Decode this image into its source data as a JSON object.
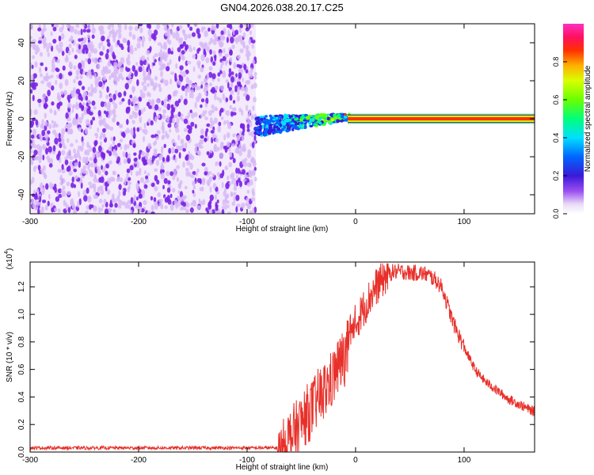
{
  "title": "GN04.2026.038.20.17.C25",
  "colors": {
    "snr_line": "#e8302a",
    "axis": "#000000",
    "scatter_light": "#d6b8f5",
    "scatter_dark": "#7a22e6"
  },
  "chart_data": [
    {
      "type": "heatmap",
      "xlabel": "Height of straight line (km)",
      "ylabel": "Frequency (Hz)",
      "xlim": [
        -300,
        165
      ],
      "ylim": [
        -50,
        50
      ],
      "x_ticks": [
        -300,
        -200,
        -100,
        0,
        100
      ],
      "y_ticks": [
        -40,
        -20,
        0,
        20,
        40
      ],
      "colorbar": {
        "label": "Normalized spectral amplitude",
        "range": [
          0.0,
          1.0
        ],
        "ticks": [
          0.0,
          0.2,
          0.4,
          0.6,
          0.8
        ]
      },
      "regions": [
        {
          "x_range": [
            -300,
            -92
          ],
          "frequency_range": [
            -50,
            50
          ],
          "amplitude": "low (0.0-0.2)"
        },
        {
          "x_range": [
            -92,
            -5
          ],
          "frequency_range": [
            -10,
            6
          ],
          "amplitude": "medium to high (0.2-1.0)"
        },
        {
          "x_range": [
            0,
            165
          ],
          "frequency_center": 0,
          "frequency_width": 4,
          "amplitude": "high (0.8-1.0)"
        }
      ]
    },
    {
      "type": "line",
      "xlabel": "Height of straight line (km)",
      "ylabel": "SNR (10 * v/v)",
      "y_multiplier": "(x10",
      "y_multiplier_exp": "4",
      "xlim": [
        -300,
        165
      ],
      "ylim": [
        0.0,
        1.38
      ],
      "x_ticks": [
        -300,
        -200,
        -100,
        0,
        100
      ],
      "y_ticks": [
        0.0,
        0.2,
        0.4,
        0.6,
        0.8,
        1.0,
        1.2
      ],
      "y_tick_labels": [
        "0.0",
        "0.2",
        "0.4",
        "0.6",
        "0.8",
        "1.0",
        "1.2"
      ],
      "series": [
        {
          "x": [
            -300,
            -250,
            -200,
            -150,
            -100,
            -70,
            -65,
            -60,
            -55,
            -50,
            -45,
            -40,
            -35,
            -30,
            -25,
            -20,
            -15,
            -10,
            -5,
            0,
            5,
            10,
            15,
            20,
            25,
            30,
            35,
            40,
            45,
            50,
            55,
            60,
            65,
            70,
            75,
            80,
            85,
            90,
            95,
            100,
            105,
            110,
            115,
            120,
            125,
            130,
            135,
            140,
            145,
            150,
            155,
            160,
            165
          ],
          "y": [
            0.03,
            0.03,
            0.03,
            0.03,
            0.03,
            0.03,
            0.12,
            0.18,
            0.22,
            0.28,
            0.34,
            0.38,
            0.45,
            0.5,
            0.55,
            0.62,
            0.7,
            0.76,
            0.86,
            0.93,
            1.01,
            1.08,
            1.15,
            1.21,
            1.26,
            1.29,
            1.31,
            1.31,
            1.31,
            1.3,
            1.3,
            1.3,
            1.29,
            1.27,
            1.24,
            1.19,
            1.06,
            0.94,
            0.85,
            0.76,
            0.68,
            0.6,
            0.55,
            0.51,
            0.48,
            0.45,
            0.42,
            0.39,
            0.37,
            0.35,
            0.33,
            0.31,
            0.29
          ]
        }
      ]
    }
  ]
}
